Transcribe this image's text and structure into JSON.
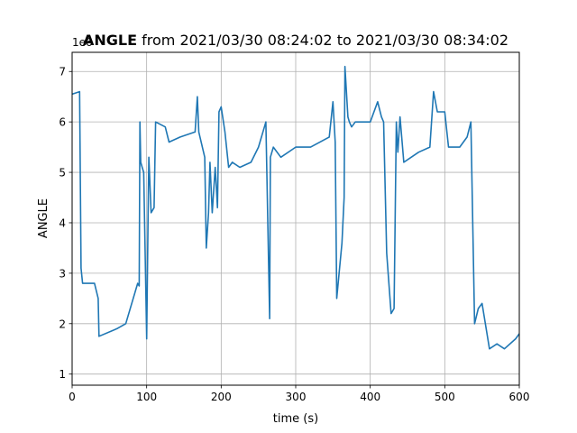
{
  "chart_data": {
    "type": "line",
    "title_bold": "ANGLE",
    "title_rest": " from 2021/03/30 08:24:02 to 2021/03/30 08:34:02",
    "xlabel": "time (s)",
    "ylabel": "ANGLE",
    "y_offset_label": "1e6",
    "xlim": [
      0,
      600
    ],
    "ylim": [
      0.78,
      7.38
    ],
    "x_ticks": [
      0,
      100,
      200,
      300,
      400,
      500,
      600
    ],
    "y_ticks": [
      1,
      2,
      3,
      4,
      5,
      6,
      7
    ],
    "grid": true,
    "line_color": "#1f77b4",
    "series": [
      {
        "x": [
          0,
          10,
          12,
          14,
          30,
          35,
          36,
          60,
          72,
          88,
          90,
          91,
          92,
          94,
          96,
          100,
          102,
          103,
          106,
          110,
          112,
          125,
          130,
          145,
          165,
          168,
          170,
          178,
          180,
          183,
          185,
          188,
          192,
          195,
          197,
          200,
          205,
          210,
          215,
          225,
          240,
          250,
          260,
          265,
          266,
          270,
          280,
          300,
          320,
          345,
          350,
          353,
          355,
          362,
          365,
          366,
          370,
          372,
          375,
          380,
          400,
          410,
          415,
          418,
          422,
          428,
          432,
          435,
          437,
          440,
          445,
          455,
          465,
          480,
          485,
          490,
          500,
          505,
          520,
          530,
          535,
          540,
          545,
          550,
          560,
          570,
          580,
          595,
          600
        ],
        "y": [
          6.55,
          6.6,
          3.1,
          2.8,
          2.8,
          2.5,
          1.75,
          1.9,
          2.0,
          2.8,
          2.75,
          6.0,
          5.2,
          5.1,
          5.0,
          1.7,
          4.2,
          5.3,
          4.2,
          4.3,
          6.0,
          5.9,
          5.6,
          5.7,
          5.8,
          6.5,
          5.8,
          5.3,
          3.5,
          4.2,
          5.2,
          4.2,
          5.1,
          4.3,
          6.2,
          6.3,
          5.8,
          5.1,
          5.2,
          5.1,
          5.2,
          5.5,
          6.0,
          2.1,
          5.3,
          5.5,
          5.3,
          5.5,
          5.5,
          5.7,
          6.4,
          5.6,
          2.5,
          3.6,
          4.5,
          7.1,
          6.1,
          6.0,
          5.9,
          6.0,
          6.0,
          6.4,
          6.1,
          6.0,
          3.4,
          2.2,
          2.3,
          6.0,
          5.4,
          6.1,
          5.2,
          5.3,
          5.4,
          5.5,
          6.6,
          6.2,
          6.2,
          5.5,
          5.5,
          5.7,
          6.0,
          2.0,
          2.3,
          2.4,
          1.5,
          1.6,
          1.5,
          1.7,
          1.8
        ]
      }
    ]
  }
}
